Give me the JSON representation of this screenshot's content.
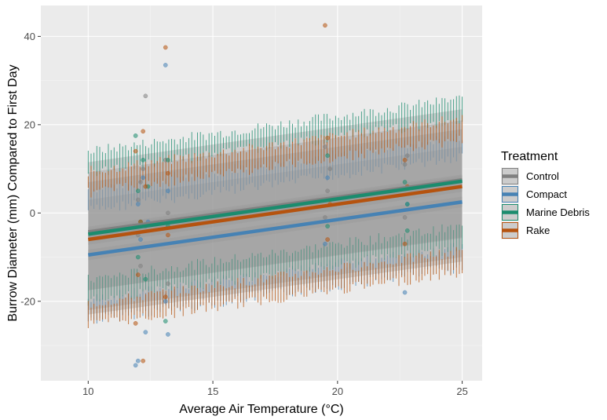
{
  "chart_data": {
    "type": "scatter",
    "xlabel": "Average Air Temperature (°C)",
    "ylabel": "Burrow Diameter (mm) Compared to First Day",
    "xlim": [
      8.1,
      25.8
    ],
    "ylim": [
      -38,
      47
    ],
    "x_ticks": [
      10,
      15,
      20,
      25
    ],
    "y_ticks": [
      -20,
      0,
      20,
      40
    ],
    "grid": true,
    "legend": {
      "title": "Treatment",
      "position": "right",
      "entries": [
        "Control",
        "Compact",
        "Marine Debris",
        "Rake"
      ]
    },
    "series": [
      {
        "name": "Control",
        "color": "#808080",
        "line": {
          "x": [
            10,
            25
          ],
          "y": [
            -4.3,
            7.5
          ]
        },
        "pred_band": {
          "lower": [
            -17.5,
            -5.7
          ],
          "upper": [
            9.2,
            21.0
          ]
        },
        "points": [
          [
            12,
            -5
          ],
          [
            12,
            3
          ],
          [
            12.1,
            -12
          ],
          [
            12.1,
            7
          ],
          [
            12.2,
            10
          ],
          [
            12.3,
            26.5
          ],
          [
            12.3,
            -3
          ],
          [
            13.1,
            12
          ],
          [
            13.2,
            0
          ],
          [
            13.2,
            -16
          ],
          [
            19.5,
            15
          ],
          [
            19.5,
            -1
          ],
          [
            19.6,
            5
          ],
          [
            19.7,
            10
          ],
          [
            22.7,
            11
          ],
          [
            22.7,
            -1
          ],
          [
            22.8,
            13
          ]
        ]
      },
      {
        "name": "Compact",
        "color": "#4682b4",
        "line": {
          "x": [
            10,
            25
          ],
          "y": [
            -9.5,
            2.5
          ]
        },
        "pred_band": {
          "lower": [
            -22,
            -10
          ],
          "upper": [
            3,
            15
          ]
        },
        "points": [
          [
            11.9,
            -34.5
          ],
          [
            12.0,
            -33.5
          ],
          [
            12.0,
            2
          ],
          [
            12.1,
            -6
          ],
          [
            12.2,
            8
          ],
          [
            12.3,
            -27
          ],
          [
            12.4,
            -2
          ],
          [
            13.1,
            33.5
          ],
          [
            13.2,
            -27.5
          ],
          [
            13.2,
            5
          ],
          [
            13.1,
            -20
          ],
          [
            19.5,
            -7
          ],
          [
            19.6,
            8
          ],
          [
            22.7,
            -18
          ],
          [
            22.8,
            2
          ]
        ]
      },
      {
        "name": "Marine Debris",
        "color": "#1b8c6e",
        "line": {
          "x": [
            10,
            25
          ],
          "y": [
            -4.8,
            7.2
          ]
        },
        "pred_band": {
          "lower": [
            -17.5,
            -5.5
          ],
          "upper": [
            11.5,
            23.5
          ]
        },
        "points": [
          [
            11.9,
            17.5
          ],
          [
            12.0,
            5
          ],
          [
            12.0,
            -10
          ],
          [
            12.1,
            -2
          ],
          [
            12.2,
            12
          ],
          [
            12.3,
            -15
          ],
          [
            12.4,
            6
          ],
          [
            13.1,
            -24.5
          ],
          [
            13.2,
            -3
          ],
          [
            13.2,
            12
          ],
          [
            19.5,
            3
          ],
          [
            19.6,
            -3
          ],
          [
            19.6,
            13
          ],
          [
            22.7,
            7
          ],
          [
            22.8,
            -4
          ],
          [
            22.8,
            2
          ]
        ]
      },
      {
        "name": "Rake",
        "color": "#b5530f",
        "line": {
          "x": [
            10,
            25
          ],
          "y": [
            -6.0,
            6.0
          ]
        },
        "pred_band": {
          "lower": [
            -23.0,
            -11.0
          ],
          "upper": [
            7.0,
            19.0
          ]
        },
        "points": [
          [
            11.9,
            -25
          ],
          [
            11.9,
            14
          ],
          [
            12.0,
            -14
          ],
          [
            12.1,
            -2
          ],
          [
            12.2,
            -33.5
          ],
          [
            12.2,
            18.5
          ],
          [
            12.3,
            6
          ],
          [
            13.1,
            37.5
          ],
          [
            13.1,
            -19
          ],
          [
            13.2,
            -5
          ],
          [
            13.2,
            9
          ],
          [
            19.5,
            42.5
          ],
          [
            19.6,
            -6
          ],
          [
            19.6,
            17
          ],
          [
            19.7,
            2
          ],
          [
            22.7,
            12
          ],
          [
            22.7,
            -7
          ],
          [
            22.8,
            6
          ]
        ]
      }
    ]
  }
}
